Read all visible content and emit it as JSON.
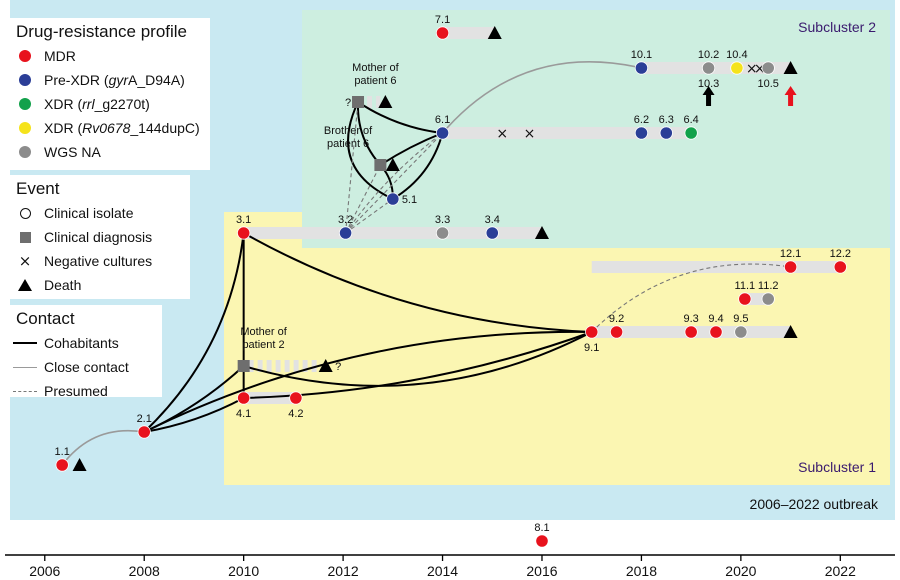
{
  "colors": {
    "outbreak_bg": "#c9e9f2",
    "subcluster1_bg": "#fbf6b2",
    "subcluster2_bg": "#cdeee0",
    "mdr": "#e8121d",
    "prexdr": "#2b3e97",
    "xdr_rrl": "#13a14b",
    "xdr_rv": "#f5e31c",
    "wgs_na": "#8c8c8c",
    "diagnosis": "#6e6e6e",
    "timeline_bar": "#e2e2e2",
    "close_contact": "#9a9a9a",
    "arrow_red": "#e8121d",
    "arrow_black": "#000000"
  },
  "legend": {
    "profile_title": "Drug-resistance profile",
    "profile": [
      {
        "key": "mdr",
        "label": "MDR"
      },
      {
        "key": "prexdr",
        "label_a": "Pre-XDR (",
        "label_it": "gyr",
        "label_b": "A_D94A)"
      },
      {
        "key": "xdr_rrl",
        "label_a": "XDR (",
        "label_it": "rrl",
        "label_b": "_g2270t)"
      },
      {
        "key": "xdr_rv",
        "label_a": "XDR (",
        "label_it": "Rv0678",
        "label_b": "_144dupC)"
      },
      {
        "key": "wgs_na",
        "label": "WGS NA"
      }
    ],
    "event_title": "Event",
    "events": [
      {
        "icon": "circle-outline-icon",
        "label": "Clinical isolate"
      },
      {
        "icon": "square-icon",
        "label": "Clinical diagnosis"
      },
      {
        "icon": "cross-icon",
        "glyph": "×",
        "label": "Negative cultures"
      },
      {
        "icon": "triangle-icon",
        "label": "Death"
      }
    ],
    "contact_title": "Contact",
    "contacts": [
      {
        "style": "solid-black",
        "label": "Cohabitants"
      },
      {
        "style": "solid-gray",
        "label": "Close contact"
      },
      {
        "style": "dashed-gray",
        "label": "Presumed"
      }
    ]
  },
  "regions": {
    "outbreak": "2006–2022 outbreak",
    "subcluster1": "Subcluster 1",
    "subcluster2": "Subcluster 2"
  },
  "axis": {
    "min": 2005.2,
    "max": 2023.1,
    "ticks": [
      2006,
      2008,
      2010,
      2012,
      2014,
      2016,
      2018,
      2020,
      2022
    ]
  },
  "rows": {
    "r7": 33,
    "r10": 68,
    "r6": 133,
    "r3": 233,
    "r12": 267,
    "r11": 299,
    "r9": 332,
    "r4": 398,
    "r2": 432,
    "r1": 465,
    "r8": 541,
    "r_mother6": 102,
    "r_brother6": 165,
    "r_5": 199,
    "r_mother2": 366
  },
  "bars": [
    {
      "row": "r7",
      "x0": 2014,
      "x1": 2015.05
    },
    {
      "row": "r10",
      "x0": 2018,
      "x1": 2021
    },
    {
      "row": "r6",
      "x0": 2014,
      "x1": 2019
    },
    {
      "row": "r3",
      "x0": 2010,
      "x1": 2016
    },
    {
      "row": "r12",
      "x0": 2017.0,
      "x1": 2022
    },
    {
      "row": "r11",
      "x0": 2020,
      "x1": 2020.55
    },
    {
      "row": "r9",
      "x0": 2017,
      "x1": 2021
    },
    {
      "row": "r4",
      "x0": 2010,
      "x1": 2011.05
    }
  ],
  "dashed_bars": [
    {
      "row": "r_mother2",
      "x0": 2010.1,
      "x1": 2011.55
    },
    {
      "row": "r_mother6",
      "x0": 2012.3,
      "x1": 2012.75
    }
  ],
  "isolates": [
    {
      "label": "7.1",
      "x": 2014.0,
      "row": "r7",
      "type": "mdr",
      "lp": "above"
    },
    {
      "label": "10.1",
      "x": 2018.0,
      "row": "r10",
      "type": "prexdr",
      "lp": "above"
    },
    {
      "label": "10.2",
      "x": 2019.35,
      "row": "r10",
      "type": "wgs_na",
      "lp": "above"
    },
    {
      "label": "10.3",
      "x": 2019.35,
      "row": "r10",
      "type": "none",
      "lp": "below"
    },
    {
      "label": "10.4",
      "x": 2019.92,
      "row": "r10",
      "type": "xdr_rv",
      "lp": "above"
    },
    {
      "label": "10.5",
      "x": 2020.55,
      "row": "r10",
      "type": "wgs_na",
      "lp": "below"
    },
    {
      "label": "6.1",
      "x": 2014.0,
      "row": "r6",
      "type": "prexdr",
      "lp": "above"
    },
    {
      "label": "6.2",
      "x": 2018.0,
      "row": "r6",
      "type": "prexdr",
      "lp": "above"
    },
    {
      "label": "6.3",
      "x": 2018.5,
      "row": "r6",
      "type": "prexdr",
      "lp": "above"
    },
    {
      "label": "6.4",
      "x": 2019.0,
      "row": "r6",
      "type": "xdr_rrl",
      "lp": "above"
    },
    {
      "label": "5.1",
      "x": 2013.0,
      "row": "r_5",
      "type": "prexdr",
      "lp": "right"
    },
    {
      "label": "3.1",
      "x": 2010.0,
      "row": "r3",
      "type": "mdr",
      "lp": "above"
    },
    {
      "label": "3.2",
      "x": 2012.05,
      "row": "r3",
      "type": "prexdr",
      "lp": "above"
    },
    {
      "label": "3.3",
      "x": 2014.0,
      "row": "r3",
      "type": "wgs_na",
      "lp": "above"
    },
    {
      "label": "3.4",
      "x": 2015.0,
      "row": "r3",
      "type": "prexdr",
      "lp": "above"
    },
    {
      "label": "12.1",
      "x": 2021.0,
      "row": "r12",
      "type": "mdr",
      "lp": "above"
    },
    {
      "label": "12.2",
      "x": 2022.0,
      "row": "r12",
      "type": "mdr",
      "lp": "above"
    },
    {
      "label": "11.1",
      "x": 2020.08,
      "row": "r11",
      "type": "mdr",
      "lp": "above"
    },
    {
      "label": "11.2",
      "x": 2020.55,
      "row": "r11",
      "type": "wgs_na",
      "lp": "above"
    },
    {
      "label": "9.1",
      "x": 2017.0,
      "row": "r9",
      "type": "mdr",
      "lp": "below"
    },
    {
      "label": "9.2",
      "x": 2017.5,
      "row": "r9",
      "type": "mdr",
      "lp": "above"
    },
    {
      "label": "9.3",
      "x": 2019.0,
      "row": "r9",
      "type": "mdr",
      "lp": "above"
    },
    {
      "label": "9.4",
      "x": 2019.5,
      "row": "r9",
      "type": "mdr",
      "lp": "above"
    },
    {
      "label": "9.5",
      "x": 2020.0,
      "row": "r9",
      "type": "wgs_na",
      "lp": "above"
    },
    {
      "label": "4.1",
      "x": 2010.0,
      "row": "r4",
      "type": "mdr",
      "lp": "below"
    },
    {
      "label": "4.2",
      "x": 2011.05,
      "row": "r4",
      "type": "mdr",
      "lp": "below"
    },
    {
      "label": "2.1",
      "x": 2008.0,
      "row": "r2",
      "type": "mdr",
      "lp": "above"
    },
    {
      "label": "1.1",
      "x": 2006.35,
      "row": "r1",
      "type": "mdr",
      "lp": "above"
    },
    {
      "label": "8.1",
      "x": 2016.0,
      "row": "r8",
      "type": "mdr",
      "lp": "above"
    }
  ],
  "diagnoses": [
    {
      "x": 2010.0,
      "row": "r_mother2"
    },
    {
      "x": 2012.3,
      "row": "r_mother6"
    },
    {
      "x": 2012.75,
      "row": "r_brother6"
    }
  ],
  "deaths": [
    {
      "x": 2015.05,
      "row": "r7"
    },
    {
      "x": 2021.0,
      "row": "r10"
    },
    {
      "x": 2016.0,
      "row": "r3"
    },
    {
      "x": 2021.0,
      "row": "r9"
    },
    {
      "x": 2006.7,
      "row": "r1"
    },
    {
      "x": 2011.65,
      "row": "r_mother2"
    },
    {
      "x": 2012.85,
      "row": "r_mother6"
    },
    {
      "x": 2013.0,
      "row": "r_brother6"
    }
  ],
  "negatives": [
    {
      "x": 2015.2,
      "row": "r6"
    },
    {
      "x": 2015.75,
      "row": "r6"
    },
    {
      "x": 2020.22,
      "row": "r10"
    },
    {
      "x": 2020.38,
      "row": "r10"
    }
  ],
  "unknowns": [
    {
      "text": "?",
      "x": 2012.1,
      "row": "r_mother6"
    },
    {
      "text": "?",
      "x": 2011.9,
      "row": "r_mother2"
    }
  ],
  "arrows": [
    {
      "x": 2019.35,
      "row": "r10",
      "color": "arrow_black"
    },
    {
      "x": 2021.0,
      "row": "r10",
      "color": "arrow_red"
    }
  ],
  "patient_labels": [
    {
      "text_a": "Mother of",
      "text_b": "patient 6",
      "x": 2012.65,
      "row": "r_mother6",
      "dy": -31
    },
    {
      "text_a": "Brother of",
      "text_b": "patient 6",
      "x": 2012.1,
      "row": "r_brother6",
      "dy": -31
    },
    {
      "text_a": "Mother of",
      "text_b": "patient 2",
      "x": 2010.4,
      "row": "r_mother2",
      "dy": -31
    }
  ],
  "contacts": [
    {
      "type": "cohab",
      "from": [
        2010.0,
        "r3"
      ],
      "to": [
        2010.0,
        "r4"
      ],
      "bend": 0
    },
    {
      "type": "cohab",
      "from": [
        2008.0,
        "r2"
      ],
      "to": [
        2010.0,
        "r3"
      ],
      "bend": 0.18
    },
    {
      "type": "cohab",
      "from": [
        2008.0,
        "r2"
      ],
      "to": [
        2010.0,
        "r_mother2"
      ],
      "bend": 0.08
    },
    {
      "type": "cohab",
      "from": [
        2008.0,
        "r2"
      ],
      "to": [
        2010.0,
        "r4"
      ],
      "bend": 0.08
    },
    {
      "type": "cohab",
      "from": [
        2008.0,
        "r2"
      ],
      "to": [
        2017.0,
        "r9"
      ],
      "bend": -0.12
    },
    {
      "type": "cohab",
      "from": [
        2010.0,
        "r3"
      ],
      "to": [
        2017.0,
        "r9"
      ],
      "bend": 0.12
    },
    {
      "type": "cohab",
      "from": [
        2010.0,
        "r_mother2"
      ],
      "to": [
        2017.0,
        "r9"
      ],
      "bend": 0.2
    },
    {
      "type": "cohab",
      "from": [
        2010.0,
        "r4"
      ],
      "to": [
        2017.0,
        "r9"
      ],
      "bend": 0.08
    },
    {
      "type": "cohab",
      "from": [
        2012.3,
        "r_mother6"
      ],
      "to": [
        2014.0,
        "r6"
      ],
      "bend": 0.12
    },
    {
      "type": "cohab",
      "from": [
        2012.3,
        "r_mother6"
      ],
      "to": [
        2012.75,
        "r_brother6"
      ],
      "bend": 0.2
    },
    {
      "type": "cohab",
      "from": [
        2012.3,
        "r_mother6"
      ],
      "to": [
        2013.0,
        "r_5"
      ],
      "bend": 0.5
    },
    {
      "type": "cohab",
      "from": [
        2012.75,
        "r_brother6"
      ],
      "to": [
        2014.0,
        "r6"
      ],
      "bend": -0.05
    },
    {
      "type": "cohab",
      "from": [
        2012.75,
        "r_brother6"
      ],
      "to": [
        2013.0,
        "r_5"
      ],
      "bend": -0.2
    },
    {
      "type": "cohab",
      "from": [
        2013.0,
        "r_5"
      ],
      "to": [
        2014.0,
        "r6"
      ],
      "bend": 0.2
    },
    {
      "type": "presumed",
      "from": [
        2012.05,
        "r3"
      ],
      "to": [
        2012.3,
        "r_mother6"
      ],
      "bend": 0
    },
    {
      "type": "presumed",
      "from": [
        2012.05,
        "r3"
      ],
      "to": [
        2012.75,
        "r_brother6"
      ],
      "bend": 0
    },
    {
      "type": "presumed",
      "from": [
        2012.05,
        "r3"
      ],
      "to": [
        2013.0,
        "r_5"
      ],
      "bend": 0
    },
    {
      "type": "presumed",
      "from": [
        2012.05,
        "r3"
      ],
      "to": [
        2014.0,
        "r6"
      ],
      "bend": 0
    },
    {
      "type": "presumed",
      "from": [
        2012.05,
        "r3"
      ],
      "to": [
        2014.0,
        "r6"
      ],
      "bend": -0.08
    },
    {
      "type": "presumed",
      "from": [
        2017.0,
        "r9"
      ],
      "to": [
        2021.0,
        "r12"
      ],
      "bend": -0.25
    },
    {
      "type": "close",
      "from": [
        2006.35,
        "r1"
      ],
      "to": [
        2008.0,
        "r2"
      ],
      "bend": -0.3
    },
    {
      "type": "close",
      "from": [
        2014.0,
        "r6"
      ],
      "to": [
        2018.0,
        "r10"
      ],
      "bend": -0.3
    }
  ]
}
